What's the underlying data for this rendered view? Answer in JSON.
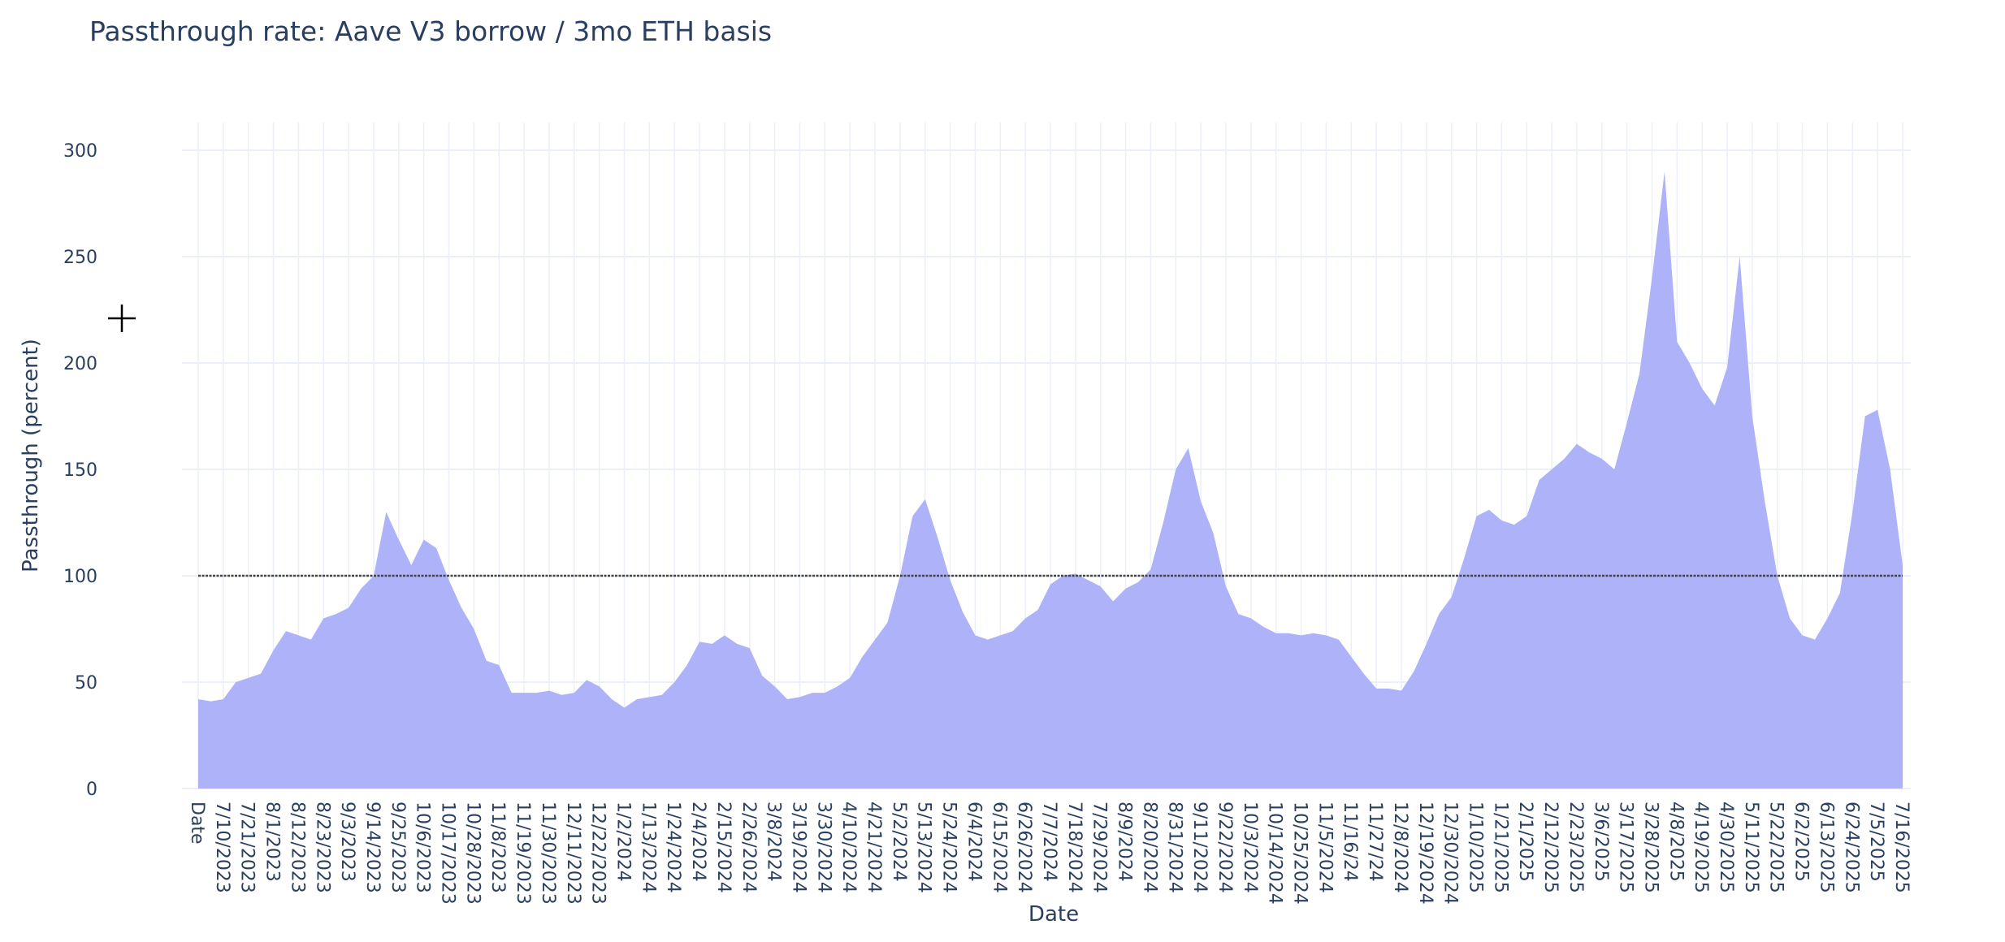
{
  "chart_data": {
    "type": "area",
    "title": "Passthrough rate: Aave V3 borrow / 3mo ETH basis",
    "x_label": "Date",
    "y_label": "Passthrough (percent)",
    "categories": [
      "Date",
      null,
      "7/10/2023",
      null,
      "7/21/2023",
      null,
      "8/1/2023",
      null,
      "8/12/2023",
      null,
      "8/23/2023",
      null,
      "9/3/2023",
      null,
      "9/14/2023",
      null,
      "9/25/2023",
      null,
      "10/6/2023",
      null,
      "10/17/2023",
      null,
      "10/28/2023",
      null,
      "11/8/2023",
      null,
      "11/19/2023",
      null,
      "11/30/2023",
      null,
      "12/11/2023",
      null,
      "12/22/2023",
      null,
      "1/2/2024",
      null,
      "1/13/2024",
      null,
      "1/24/2024",
      null,
      "2/4/2024",
      null,
      "2/15/2024",
      null,
      "2/26/2024",
      null,
      "3/8/2024",
      null,
      "3/19/2024",
      null,
      "3/30/2024",
      null,
      "4/10/2024",
      null,
      "4/21/2024",
      null,
      "5/2/2024",
      null,
      "5/13/2024",
      null,
      "5/24/2024",
      null,
      "6/4/2024",
      null,
      "6/15/2024",
      null,
      "6/26/2024",
      null,
      "7/7/2024",
      null,
      "7/18/2024",
      null,
      "7/29/2024",
      null,
      "8/9/2024",
      null,
      "8/20/2024",
      null,
      "8/31/2024",
      null,
      "9/11/2024",
      null,
      "9/22/2024",
      null,
      "10/3/2024",
      null,
      "10/14/2024",
      null,
      "10/25/2024",
      null,
      "11/5/2024",
      null,
      "11/16/24",
      null,
      "11/27/24",
      null,
      "12/8/2024",
      null,
      "12/19/2024",
      null,
      "12/30/2024",
      null,
      "1/10/2025",
      null,
      "1/21/2025",
      null,
      "2/1/2025",
      null,
      "2/12/2025",
      null,
      "2/23/2025",
      null,
      "3/6/2025",
      null,
      "3/17/2025",
      null,
      "3/28/2025",
      null,
      "4/8/2025",
      null,
      "4/19/2025",
      null,
      "4/30/2025",
      null,
      "5/11/2025",
      null,
      "5/22/2025",
      null,
      "6/2/2025",
      null,
      "6/13/2025",
      null,
      "6/24/2025",
      null,
      "7/5/2025",
      null,
      "7/16/2025"
    ],
    "values": [
      42,
      41,
      42,
      50,
      52,
      54,
      65,
      74,
      72,
      70,
      80,
      82,
      85,
      94,
      100,
      130,
      117,
      105,
      117,
      113,
      98,
      85,
      75,
      60,
      58,
      45,
      45,
      45,
      46,
      44,
      45,
      51,
      48,
      42,
      38,
      42,
      43,
      44,
      50,
      58,
      69,
      68,
      72,
      68,
      66,
      53,
      48,
      42,
      43,
      45,
      45,
      48,
      52,
      62,
      70,
      78,
      100,
      128,
      136,
      118,
      98,
      83,
      72,
      70,
      72,
      74,
      80,
      84,
      96,
      100,
      101,
      98,
      95,
      88,
      94,
      97,
      103,
      125,
      150,
      160,
      135,
      120,
      95,
      82,
      80,
      76,
      73,
      73,
      72,
      73,
      72,
      70,
      62,
      54,
      47,
      47,
      46,
      55,
      68,
      82,
      90,
      108,
      128,
      131,
      126,
      124,
      128,
      145,
      150,
      155,
      162,
      158,
      155,
      150,
      172,
      195,
      240,
      290,
      210,
      200,
      188,
      180,
      198,
      250,
      175,
      135,
      100,
      80,
      72,
      70,
      80,
      92,
      130,
      175,
      178,
      150,
      105
    ],
    "color": "#aeb3f9",
    "hline": 100,
    "hline_color": "#444444",
    "ylim": [
      0,
      313
    ],
    "yticks": [
      0,
      50,
      100,
      150,
      200,
      250,
      300
    ],
    "grid": true
  }
}
